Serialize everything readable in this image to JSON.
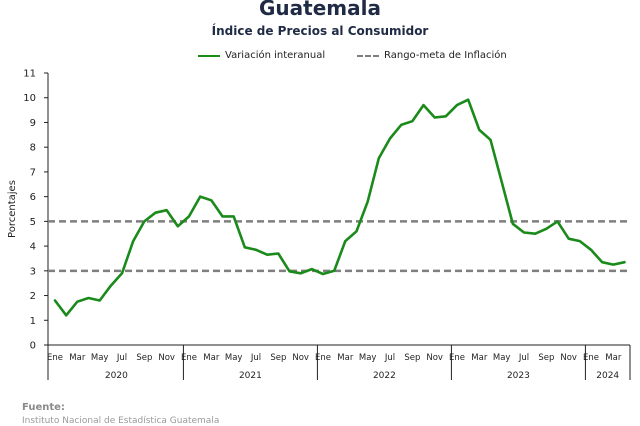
{
  "header": {
    "title": "Guatemala",
    "subtitle": "Índice de Precios al Consumidor"
  },
  "source": {
    "label": "Fuente:",
    "detail": "Instituto Nacional de Estadística Guatemala"
  },
  "colors": {
    "line": "#1a8a1a",
    "target": "#7f7f7f",
    "axis": "#222222"
  },
  "chart_data": {
    "type": "line",
    "ylabel": "Porcentajes",
    "ylim": [
      0,
      11
    ],
    "yticks": [
      0,
      1,
      2,
      3,
      4,
      5,
      6,
      7,
      8,
      9,
      10,
      11
    ],
    "grid": false,
    "legend_position": "top-center",
    "x_tick_labels": [
      "Ene",
      "Mar",
      "May",
      "Jul",
      "Sep",
      "Nov",
      "Ene",
      "Mar",
      "May",
      "Jul",
      "Sep",
      "Nov",
      "Ene",
      "Mar",
      "May",
      "Jul",
      "Sep",
      "Nov",
      "Ene",
      "Mar",
      "May",
      "Jul",
      "Sep",
      "Nov",
      "Ene",
      "Mar"
    ],
    "years": [
      {
        "label": "2020",
        "months": 12
      },
      {
        "label": "2021",
        "months": 12
      },
      {
        "label": "2022",
        "months": 12
      },
      {
        "label": "2023",
        "months": 12
      },
      {
        "label": "2024",
        "months": 4
      }
    ],
    "x": [
      "2020-01",
      "2020-02",
      "2020-03",
      "2020-04",
      "2020-05",
      "2020-06",
      "2020-07",
      "2020-08",
      "2020-09",
      "2020-10",
      "2020-11",
      "2020-12",
      "2021-01",
      "2021-02",
      "2021-03",
      "2021-04",
      "2021-05",
      "2021-06",
      "2021-07",
      "2021-08",
      "2021-09",
      "2021-10",
      "2021-11",
      "2021-12",
      "2022-01",
      "2022-02",
      "2022-03",
      "2022-04",
      "2022-05",
      "2022-06",
      "2022-07",
      "2022-08",
      "2022-09",
      "2022-10",
      "2022-11",
      "2022-12",
      "2023-01",
      "2023-02",
      "2023-03",
      "2023-04",
      "2023-05",
      "2023-06",
      "2023-07",
      "2023-08",
      "2023-09",
      "2023-10",
      "2023-11",
      "2023-12",
      "2024-01",
      "2024-02",
      "2024-03",
      "2024-04"
    ],
    "series": [
      {
        "name": "Variación interanual",
        "style": "solid",
        "values": [
          1.8,
          1.2,
          1.75,
          1.9,
          1.8,
          2.4,
          2.9,
          4.2,
          5.0,
          5.35,
          5.45,
          4.8,
          5.2,
          6.0,
          5.85,
          5.2,
          5.2,
          3.95,
          3.85,
          3.65,
          3.7,
          2.98,
          2.9,
          3.07,
          2.87,
          3.0,
          4.2,
          4.6,
          5.8,
          7.55,
          8.35,
          8.9,
          9.05,
          9.7,
          9.2,
          9.25,
          9.7,
          9.92,
          8.7,
          8.3,
          6.6,
          4.9,
          4.55,
          4.5,
          4.7,
          5.0,
          4.3,
          4.2,
          3.85,
          3.35,
          3.25,
          3.35
        ]
      },
      {
        "name": "Rango-meta de Inflación",
        "style": "dashed",
        "upper": 5,
        "lower": 3
      }
    ]
  }
}
